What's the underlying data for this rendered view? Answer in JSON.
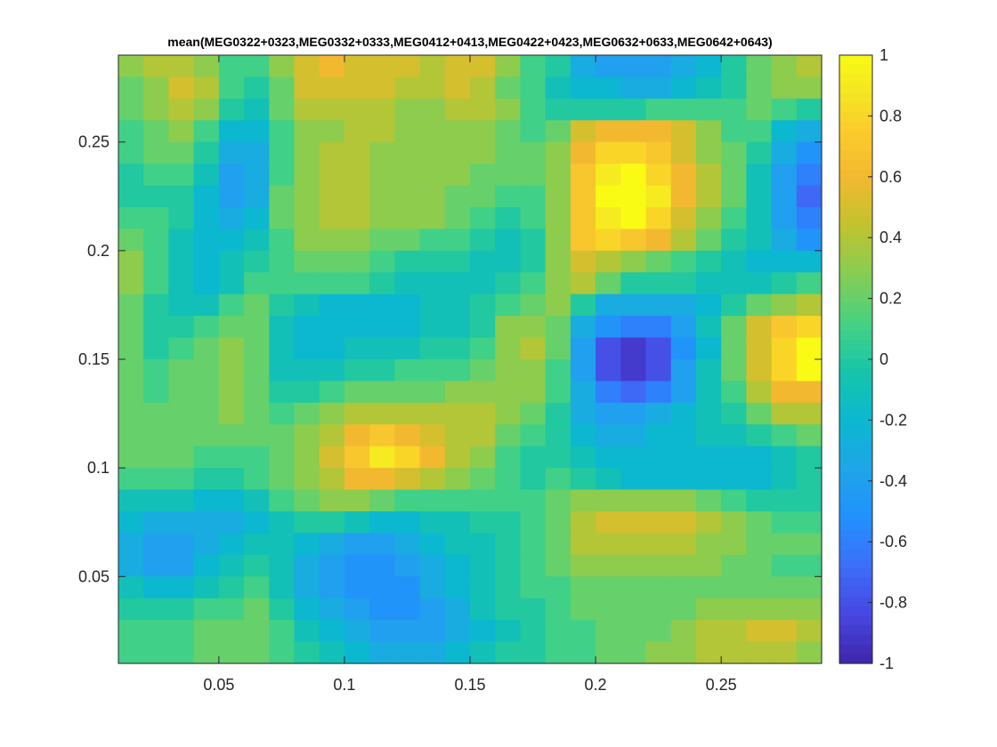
{
  "chart_data": {
    "type": "heatmap",
    "title": "mean(MEG0322+0323,MEG0332+0333,MEG0412+0413,MEG0422+0423,MEG0632+0633,MEG0642+0643)",
    "xlabel": "",
    "ylabel": "",
    "xlim": [
      0.01,
      0.29
    ],
    "ylim": [
      0.01,
      0.29
    ],
    "grid": false,
    "colormap": "parula",
    "clim": [
      -1,
      1
    ],
    "x_ticks": [
      0.05,
      0.1,
      0.15,
      0.2,
      0.25
    ],
    "x_tick_labels": [
      "0.05",
      "0.1",
      "0.15",
      "0.2",
      "0.25"
    ],
    "y_ticks": [
      0.05,
      0.1,
      0.15,
      0.2,
      0.25
    ],
    "y_tick_labels": [
      "0.05",
      "0.1",
      "0.15",
      "0.2",
      "0.25"
    ],
    "colorbar_ticks": [
      1,
      0.8,
      0.6,
      0.4,
      0.2,
      0,
      -0.2,
      -0.4,
      -0.6,
      -0.8,
      -1
    ],
    "colorbar_tick_labels": [
      "1",
      "0.8",
      "0.6",
      "0.4",
      "0.2",
      "0",
      "-0.2",
      "-0.4",
      "-0.6",
      "-0.8",
      "-1"
    ],
    "cell_centers_x": [
      0.015,
      0.025,
      0.035,
      0.045,
      0.055,
      0.065,
      0.075,
      0.085,
      0.095,
      0.105,
      0.115,
      0.125,
      0.135,
      0.145,
      0.155,
      0.165,
      0.175,
      0.185,
      0.195,
      0.205,
      0.215,
      0.225,
      0.235,
      0.245,
      0.255,
      0.265,
      0.275,
      0.285
    ],
    "cell_centers_y_top_to_bottom": [
      0.285,
      0.275,
      0.265,
      0.255,
      0.245,
      0.235,
      0.225,
      0.215,
      0.205,
      0.195,
      0.185,
      0.175,
      0.165,
      0.155,
      0.145,
      0.135,
      0.125,
      0.115,
      0.105,
      0.095,
      0.085,
      0.075,
      0.065,
      0.055,
      0.045,
      0.035,
      0.025,
      0.015
    ],
    "values_rows_top_to_bottom": [
      [
        0.3,
        0.4,
        0.4,
        0.3,
        0.1,
        0.1,
        0.3,
        0.5,
        0.6,
        0.5,
        0.5,
        0.5,
        0.4,
        0.5,
        0.5,
        0.3,
        0.1,
        0.0,
        -0.3,
        -0.4,
        -0.4,
        -0.4,
        -0.3,
        -0.2,
        0.0,
        0.2,
        0.3,
        0.4
      ],
      [
        0.2,
        0.3,
        0.5,
        0.4,
        0.1,
        0.0,
        0.2,
        0.5,
        0.5,
        0.5,
        0.5,
        0.4,
        0.4,
        0.5,
        0.4,
        0.2,
        0.1,
        -0.1,
        -0.2,
        -0.2,
        -0.3,
        -0.3,
        -0.2,
        -0.1,
        0.0,
        0.2,
        0.3,
        0.3
      ],
      [
        0.2,
        0.3,
        0.4,
        0.3,
        0.0,
        -0.1,
        0.2,
        0.4,
        0.4,
        0.4,
        0.4,
        0.3,
        0.3,
        0.4,
        0.4,
        0.3,
        0.1,
        0.0,
        0.0,
        0.0,
        0.0,
        0.1,
        0.1,
        0.1,
        0.1,
        0.2,
        0.1,
        0.0
      ],
      [
        0.1,
        0.2,
        0.3,
        0.1,
        -0.2,
        -0.2,
        0.1,
        0.3,
        0.3,
        0.4,
        0.4,
        0.3,
        0.3,
        0.3,
        0.3,
        0.2,
        0.1,
        0.2,
        0.5,
        0.6,
        0.6,
        0.6,
        0.5,
        0.3,
        0.1,
        0.1,
        -0.2,
        -0.3
      ],
      [
        0.1,
        0.2,
        0.2,
        0.0,
        -0.3,
        -0.3,
        0.1,
        0.3,
        0.4,
        0.4,
        0.3,
        0.3,
        0.3,
        0.3,
        0.3,
        0.2,
        0.2,
        0.3,
        0.6,
        0.8,
        0.8,
        0.7,
        0.5,
        0.3,
        0.2,
        0.0,
        -0.3,
        -0.5
      ],
      [
        0.0,
        0.1,
        0.1,
        -0.1,
        -0.4,
        -0.3,
        0.1,
        0.3,
        0.4,
        0.4,
        0.3,
        0.3,
        0.3,
        0.3,
        0.2,
        0.2,
        0.2,
        0.3,
        0.7,
        0.9,
        1.0,
        0.8,
        0.6,
        0.4,
        0.2,
        -0.1,
        -0.4,
        -0.6
      ],
      [
        0.0,
        0.0,
        0.0,
        -0.2,
        -0.4,
        -0.3,
        0.2,
        0.3,
        0.4,
        0.4,
        0.3,
        0.3,
        0.3,
        0.2,
        0.2,
        0.1,
        0.1,
        0.3,
        0.7,
        1.0,
        1.0,
        0.9,
        0.6,
        0.4,
        0.2,
        -0.1,
        -0.4,
        -0.7
      ],
      [
        0.1,
        0.1,
        0.0,
        -0.2,
        -0.3,
        -0.2,
        0.2,
        0.3,
        0.4,
        0.4,
        0.3,
        0.3,
        0.3,
        0.2,
        0.1,
        0.0,
        0.1,
        0.3,
        0.7,
        0.9,
        1.0,
        0.8,
        0.5,
        0.3,
        0.1,
        -0.1,
        -0.4,
        -0.6
      ],
      [
        0.2,
        0.1,
        -0.1,
        -0.2,
        -0.2,
        -0.1,
        0.1,
        0.3,
        0.3,
        0.3,
        0.2,
        0.2,
        0.1,
        0.1,
        0.0,
        -0.1,
        0.0,
        0.3,
        0.7,
        0.8,
        0.7,
        0.6,
        0.4,
        0.2,
        0.0,
        -0.1,
        -0.3,
        -0.5
      ],
      [
        0.3,
        0.1,
        -0.1,
        -0.2,
        -0.1,
        0.0,
        0.1,
        0.2,
        0.2,
        0.2,
        0.1,
        0.0,
        0.0,
        0.0,
        -0.1,
        -0.1,
        0.0,
        0.3,
        0.5,
        0.4,
        0.3,
        0.2,
        0.1,
        0.0,
        -0.1,
        -0.2,
        -0.2,
        -0.2
      ],
      [
        0.3,
        0.1,
        -0.1,
        -0.2,
        -0.1,
        0.1,
        0.1,
        0.1,
        0.1,
        0.1,
        0.0,
        -0.1,
        -0.1,
        -0.1,
        -0.1,
        0.0,
        0.1,
        0.3,
        0.4,
        0.2,
        0.0,
        0.0,
        0.0,
        -0.1,
        -0.1,
        -0.1,
        0.0,
        0.1
      ],
      [
        0.2,
        0.0,
        -0.1,
        -0.1,
        0.1,
        0.2,
        0.0,
        -0.1,
        -0.2,
        -0.2,
        -0.2,
        -0.2,
        -0.1,
        -0.1,
        0.0,
        0.1,
        0.2,
        0.3,
        0.0,
        -0.3,
        -0.3,
        -0.3,
        -0.3,
        -0.2,
        0.0,
        0.2,
        0.3,
        0.4
      ],
      [
        0.2,
        0.0,
        0.0,
        0.1,
        0.2,
        0.2,
        -0.1,
        -0.2,
        -0.2,
        -0.2,
        -0.2,
        -0.2,
        -0.1,
        -0.1,
        0.0,
        0.3,
        0.3,
        0.2,
        -0.3,
        -0.5,
        -0.6,
        -0.6,
        -0.4,
        -0.1,
        0.2,
        0.5,
        0.7,
        0.8
      ],
      [
        0.2,
        0.0,
        0.1,
        0.2,
        0.3,
        0.2,
        -0.1,
        -0.2,
        -0.2,
        -0.1,
        -0.1,
        -0.1,
        0.0,
        0.0,
        0.1,
        0.3,
        0.4,
        0.2,
        -0.4,
        -0.8,
        -0.9,
        -0.8,
        -0.5,
        -0.2,
        0.2,
        0.5,
        0.8,
        1.0
      ],
      [
        0.2,
        0.1,
        0.2,
        0.2,
        0.3,
        0.2,
        -0.1,
        -0.1,
        -0.1,
        0.0,
        0.0,
        0.1,
        0.1,
        0.1,
        0.2,
        0.3,
        0.3,
        0.1,
        -0.4,
        -0.8,
        -0.9,
        -0.8,
        -0.4,
        -0.1,
        0.2,
        0.5,
        0.8,
        1.0
      ],
      [
        0.2,
        0.1,
        0.2,
        0.2,
        0.3,
        0.2,
        0.0,
        0.0,
        0.1,
        0.2,
        0.2,
        0.2,
        0.2,
        0.3,
        0.3,
        0.3,
        0.3,
        0.1,
        -0.3,
        -0.6,
        -0.7,
        -0.6,
        -0.4,
        -0.1,
        0.1,
        0.4,
        0.6,
        0.6
      ],
      [
        0.2,
        0.2,
        0.2,
        0.2,
        0.3,
        0.2,
        0.1,
        0.2,
        0.3,
        0.4,
        0.4,
        0.4,
        0.4,
        0.4,
        0.4,
        0.3,
        0.2,
        0.0,
        -0.3,
        -0.4,
        -0.4,
        -0.3,
        -0.2,
        -0.1,
        0.0,
        0.2,
        0.4,
        0.4
      ],
      [
        0.2,
        0.2,
        0.2,
        0.2,
        0.2,
        0.2,
        0.2,
        0.3,
        0.4,
        0.6,
        0.7,
        0.6,
        0.5,
        0.4,
        0.4,
        0.2,
        0.1,
        0.0,
        -0.2,
        -0.3,
        -0.3,
        -0.2,
        -0.2,
        -0.1,
        -0.1,
        0.0,
        0.1,
        0.2
      ],
      [
        0.2,
        0.2,
        0.2,
        0.1,
        0.1,
        0.1,
        0.2,
        0.3,
        0.5,
        0.7,
        0.9,
        0.8,
        0.6,
        0.4,
        0.3,
        0.1,
        0.0,
        0.0,
        -0.1,
        -0.2,
        -0.2,
        -0.2,
        -0.2,
        -0.2,
        -0.2,
        -0.2,
        -0.1,
        0.0
      ],
      [
        0.1,
        0.1,
        0.1,
        0.0,
        0.0,
        0.1,
        0.2,
        0.3,
        0.4,
        0.6,
        0.6,
        0.5,
        0.4,
        0.3,
        0.2,
        0.1,
        0.0,
        0.1,
        0.0,
        -0.1,
        -0.2,
        -0.2,
        -0.2,
        -0.2,
        -0.2,
        -0.2,
        -0.1,
        0.0
      ],
      [
        -0.1,
        -0.1,
        -0.1,
        -0.2,
        -0.2,
        -0.1,
        0.1,
        0.2,
        0.3,
        0.3,
        0.2,
        0.1,
        0.1,
        0.1,
        0.1,
        0.1,
        0.1,
        0.2,
        0.3,
        0.3,
        0.3,
        0.3,
        0.3,
        0.2,
        0.1,
        0.0,
        0.0,
        0.0
      ],
      [
        -0.2,
        -0.3,
        -0.3,
        -0.3,
        -0.3,
        -0.2,
        -0.1,
        0.0,
        0.0,
        -0.1,
        -0.2,
        -0.2,
        -0.1,
        -0.1,
        0.0,
        0.0,
        0.1,
        0.2,
        0.4,
        0.5,
        0.5,
        0.5,
        0.5,
        0.4,
        0.3,
        0.2,
        0.1,
        0.1
      ],
      [
        -0.3,
        -0.4,
        -0.4,
        -0.3,
        -0.2,
        -0.1,
        -0.1,
        -0.2,
        -0.3,
        -0.4,
        -0.4,
        -0.3,
        -0.2,
        -0.1,
        -0.1,
        0.0,
        0.1,
        0.2,
        0.4,
        0.4,
        0.4,
        0.4,
        0.4,
        0.3,
        0.3,
        0.2,
        0.2,
        0.2
      ],
      [
        -0.3,
        -0.4,
        -0.4,
        -0.2,
        -0.1,
        0.0,
        -0.1,
        -0.3,
        -0.4,
        -0.5,
        -0.5,
        -0.4,
        -0.3,
        -0.2,
        -0.1,
        0.0,
        0.1,
        0.2,
        0.3,
        0.3,
        0.3,
        0.3,
        0.3,
        0.3,
        0.2,
        0.2,
        0.1,
        0.1
      ],
      [
        -0.1,
        -0.2,
        -0.2,
        -0.1,
        0.0,
        0.1,
        -0.1,
        -0.3,
        -0.4,
        -0.5,
        -0.5,
        -0.5,
        -0.3,
        -0.2,
        -0.1,
        0.0,
        0.1,
        0.1,
        0.2,
        0.2,
        0.2,
        0.2,
        0.2,
        0.2,
        0.2,
        0.2,
        0.2,
        0.2
      ],
      [
        0.0,
        0.0,
        0.0,
        0.1,
        0.1,
        0.2,
        0.0,
        -0.2,
        -0.3,
        -0.4,
        -0.5,
        -0.5,
        -0.4,
        -0.3,
        -0.1,
        0.0,
        0.0,
        0.1,
        0.2,
        0.2,
        0.2,
        0.2,
        0.2,
        0.3,
        0.3,
        0.3,
        0.3,
        0.3
      ],
      [
        0.1,
        0.1,
        0.1,
        0.2,
        0.2,
        0.2,
        0.1,
        -0.1,
        -0.2,
        -0.3,
        -0.4,
        -0.4,
        -0.4,
        -0.3,
        -0.2,
        -0.1,
        0.0,
        0.1,
        0.1,
        0.2,
        0.2,
        0.2,
        0.3,
        0.4,
        0.4,
        0.5,
        0.5,
        0.4
      ],
      [
        0.1,
        0.1,
        0.1,
        0.2,
        0.2,
        0.2,
        0.1,
        0.0,
        -0.1,
        -0.2,
        -0.3,
        -0.3,
        -0.3,
        -0.2,
        -0.1,
        0.0,
        0.0,
        0.1,
        0.1,
        0.2,
        0.2,
        0.3,
        0.3,
        0.4,
        0.4,
        0.4,
        0.4,
        0.3
      ]
    ]
  }
}
